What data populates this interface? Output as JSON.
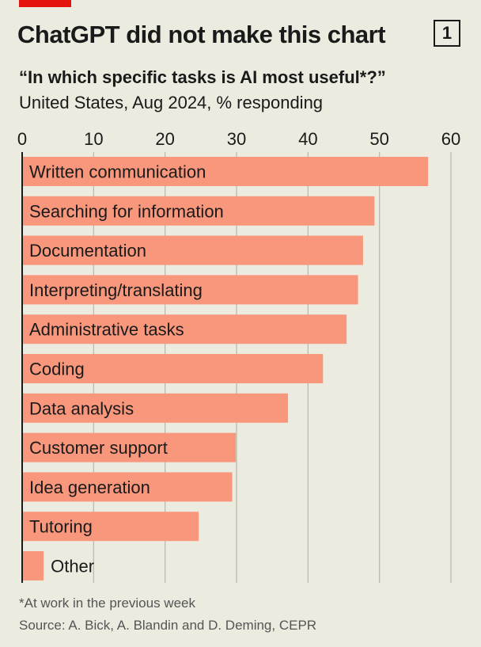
{
  "header": {
    "title": "ChatGPT did not make this chart",
    "chart_number": "1",
    "subtitle": "“In which specific tasks is AI most useful*?”",
    "description": "United States, Aug 2024, % responding"
  },
  "footer": {
    "footnote": "*At work in the previous week",
    "source": "Source: A. Bick, A. Blandin and D. Deming, CEPR"
  },
  "colors": {
    "bar": "#f8977c",
    "background": "#ecebdf",
    "accent": "#e3120b",
    "gridline": "#b8b6ab"
  },
  "chart_data": {
    "type": "bar",
    "orientation": "horizontal",
    "xlim": [
      0,
      60
    ],
    "xticks": [
      0,
      10,
      20,
      30,
      40,
      50,
      60
    ],
    "xlabel": "",
    "ylabel": "",
    "grid": true,
    "categories": [
      "Written communication",
      "Searching for information",
      "Documentation",
      "Interpreting/translating",
      "Administrative tasks",
      "Coding",
      "Data analysis",
      "Customer support",
      "Idea generation",
      "Tutoring",
      "Other"
    ],
    "values": [
      56.8,
      49.3,
      47.7,
      47.0,
      45.4,
      42.1,
      37.2,
      29.9,
      29.4,
      24.7,
      3.0
    ]
  }
}
